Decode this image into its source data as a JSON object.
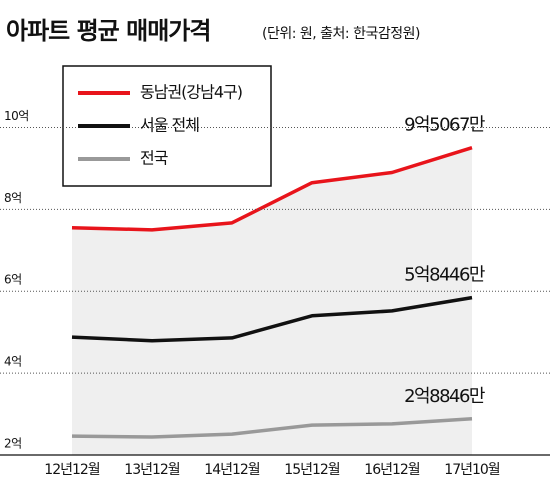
{
  "chart_data": {
    "type": "line",
    "title": "아파트 평균 매매가격",
    "subtitle": "(단위: 원, 출처: 한국감정원)",
    "categories": [
      "12년12월",
      "13년12월",
      "14년12월",
      "15년12월",
      "16년12월",
      "17년10월"
    ],
    "series": [
      {
        "name": "동남권(강남4구)",
        "color": "#e8141b",
        "values": [
          7.55,
          7.5,
          7.67,
          8.65,
          8.9,
          9.5067
        ],
        "value_labels": [
          null,
          null,
          null,
          null,
          null,
          "9억5067만"
        ]
      },
      {
        "name": "서울 전체",
        "color": "#111111",
        "values": [
          4.88,
          4.79,
          4.86,
          5.4,
          5.52,
          5.8446
        ],
        "value_labels": [
          null,
          null,
          null,
          null,
          null,
          "5억8446만"
        ]
      },
      {
        "name": "전국",
        "color": "#999999",
        "values": [
          2.46,
          2.44,
          2.51,
          2.73,
          2.76,
          2.8846
        ],
        "value_labels": [
          null,
          null,
          null,
          null,
          null,
          "2억8846만"
        ]
      }
    ],
    "ylim": [
      2,
      10.5
    ],
    "yticks": [
      {
        "value": 2,
        "label": "2억"
      },
      {
        "value": 4,
        "label": "4억"
      },
      {
        "value": 6,
        "label": "6억"
      },
      {
        "value": 8,
        "label": "8억"
      },
      {
        "value": 10,
        "label": "10억"
      }
    ],
    "grid": true
  }
}
